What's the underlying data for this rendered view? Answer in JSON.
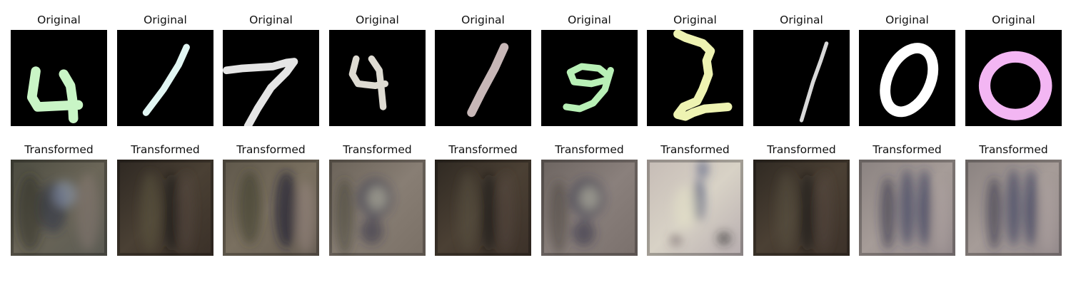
{
  "rows": [
    {
      "name": "original",
      "panels": [
        {
          "title": "Original",
          "content": "4",
          "color": "#c9f5c6"
        },
        {
          "title": "Original",
          "content": "1",
          "color": "#e2f6f3"
        },
        {
          "title": "Original",
          "content": "7",
          "color": "#e5e5e5"
        },
        {
          "title": "Original",
          "content": "4",
          "color": "#dedbd2"
        },
        {
          "title": "Original",
          "content": "1",
          "color": "#c7b7b7"
        },
        {
          "title": "Original",
          "content": "9",
          "color": "#b8f0b6"
        },
        {
          "title": "Original",
          "content": "2",
          "color": "#eef3b2"
        },
        {
          "title": "Original",
          "content": "1",
          "color": "#d9d9d9"
        },
        {
          "title": "Original",
          "content": "0",
          "color": "#ffffff"
        },
        {
          "title": "Original",
          "content": "0",
          "color": "#f3b6f3"
        }
      ]
    },
    {
      "name": "transformed",
      "panels": [
        {
          "title": "Transformed"
        },
        {
          "title": "Transformed"
        },
        {
          "title": "Transformed"
        },
        {
          "title": "Transformed"
        },
        {
          "title": "Transformed"
        },
        {
          "title": "Transformed"
        },
        {
          "title": "Transformed"
        },
        {
          "title": "Transformed"
        },
        {
          "title": "Transformed"
        },
        {
          "title": "Transformed"
        }
      ]
    }
  ]
}
